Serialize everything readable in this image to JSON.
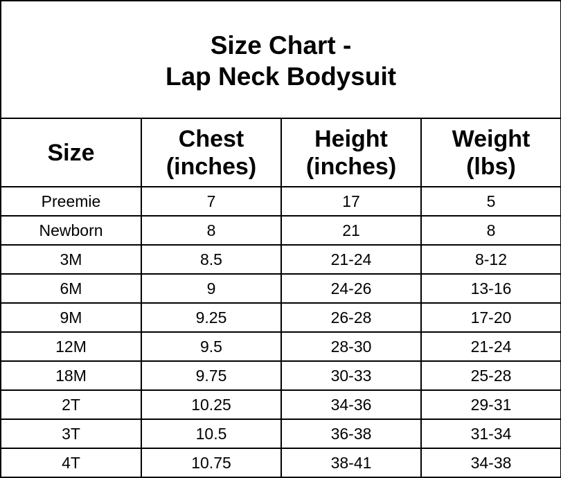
{
  "title": {
    "line1": "Size Chart -",
    "line2": "Lap Neck Bodysuit"
  },
  "headers": [
    {
      "line1": "Size",
      "line2": ""
    },
    {
      "line1": "Chest",
      "line2": "(inches)"
    },
    {
      "line1": "Height",
      "line2": "(inches)"
    },
    {
      "line1": "Weight",
      "line2": "(lbs)"
    }
  ],
  "rows": [
    [
      "Preemie",
      "7",
      "17",
      "5"
    ],
    [
      "Newborn",
      "8",
      "21",
      "8"
    ],
    [
      "3M",
      "8.5",
      "21-24",
      "8-12"
    ],
    [
      "6M",
      "9",
      "24-26",
      "13-16"
    ],
    [
      "9M",
      "9.25",
      "26-28",
      "17-20"
    ],
    [
      "12M",
      "9.5",
      "28-30",
      "21-24"
    ],
    [
      "18M",
      "9.75",
      "30-33",
      "25-28"
    ],
    [
      "2T",
      "10.25",
      "34-36",
      "29-31"
    ],
    [
      "3T",
      "10.5",
      "36-38",
      "31-34"
    ],
    [
      "4T",
      "10.75",
      "38-41",
      "34-38"
    ]
  ]
}
